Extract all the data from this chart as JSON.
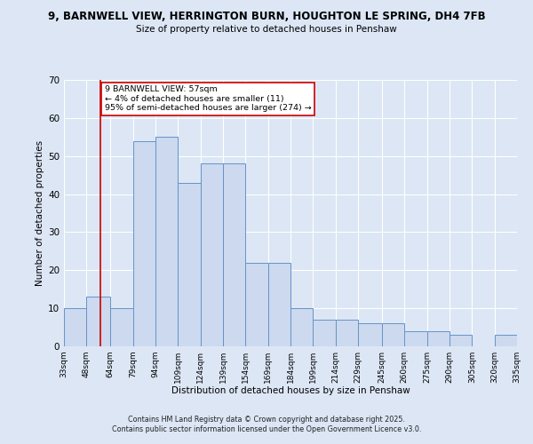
{
  "title_line1": "9, BARNWELL VIEW, HERRINGTON BURN, HOUGHTON LE SPRING, DH4 7FB",
  "title_line2": "Size of property relative to detached houses in Penshaw",
  "xlabel": "Distribution of detached houses by size in Penshaw",
  "ylabel": "Number of detached properties",
  "bar_edges": [
    33,
    48,
    64,
    79,
    94,
    109,
    124,
    139,
    154,
    169,
    184,
    199,
    214,
    229,
    245,
    260,
    275,
    290,
    305,
    320,
    335
  ],
  "bar_heights": [
    10,
    13,
    10,
    54,
    55,
    43,
    48,
    48,
    22,
    22,
    10,
    7,
    7,
    6,
    6,
    4,
    4,
    3,
    0,
    3,
    0
  ],
  "bar_color": "#ccd9ee",
  "bar_edge_color": "#6693c8",
  "red_line_x": 57,
  "red_line_color": "#cc0000",
  "ylim": [
    0,
    70
  ],
  "yticks": [
    0,
    10,
    20,
    30,
    40,
    50,
    60,
    70
  ],
  "annotation_text": "9 BARNWELL VIEW: 57sqm\n← 4% of detached houses are smaller (11)\n95% of semi-detached houses are larger (274) →",
  "annotation_box_color": "white",
  "annotation_box_edge": "#cc0000",
  "bg_color": "#dce6f5",
  "footer_text": "Contains HM Land Registry data © Crown copyright and database right 2025.\nContains public sector information licensed under the Open Government Licence v3.0.",
  "tick_labels": [
    "33sqm",
    "48sqm",
    "64sqm",
    "79sqm",
    "94sqm",
    "109sqm",
    "124sqm",
    "139sqm",
    "154sqm",
    "169sqm",
    "184sqm",
    "199sqm",
    "214sqm",
    "229sqm",
    "245sqm",
    "260sqm",
    "275sqm",
    "290sqm",
    "305sqm",
    "320sqm",
    "335sqm"
  ]
}
